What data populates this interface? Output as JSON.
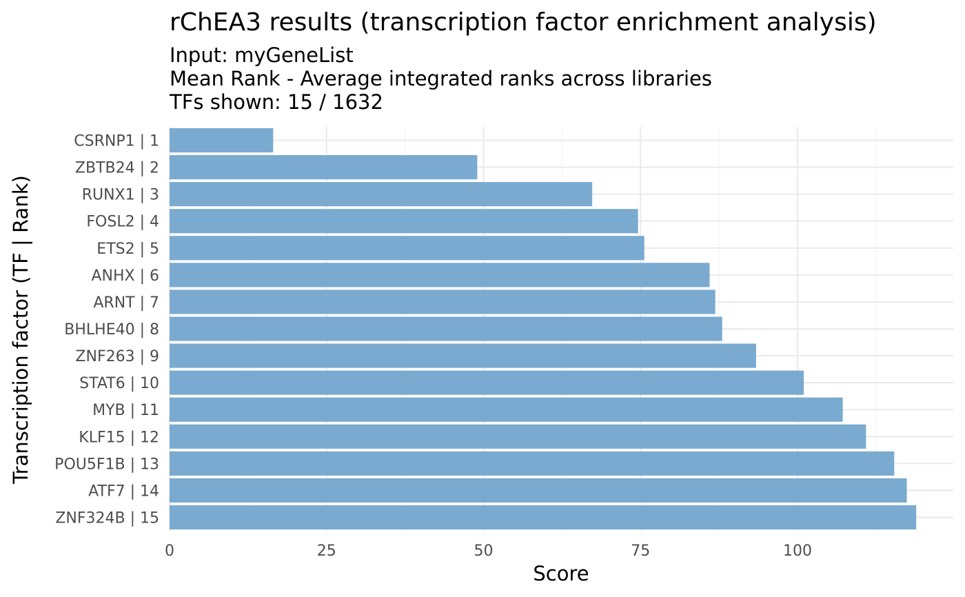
{
  "chart_data": {
    "type": "bar",
    "orientation": "horizontal",
    "title": "rChEA3 results (transcription factor enrichment analysis)",
    "subtitle_lines": [
      "Input: myGeneList",
      "Mean Rank - Average integrated ranks across libraries",
      "TFs shown: 15 / 1632"
    ],
    "xlabel": "Score",
    "ylabel": "Transcription factor (TF | Rank)",
    "categories": [
      "CSRNP1 | 1",
      "ZBTB24 | 2",
      "RUNX1 | 3",
      "FOSL2 | 4",
      "ETS2 | 5",
      "ANHX | 6",
      "ARNT | 7",
      "BHLHE40 | 8",
      "ZNF263 | 9",
      "STAT6 | 10",
      "MYB | 11",
      "KLF15 | 12",
      "POU5F1B | 13",
      "ATF7 | 14",
      "ZNF324B | 15"
    ],
    "values": [
      16.5,
      49,
      67.3,
      74.6,
      75.6,
      86,
      86.9,
      88,
      93.4,
      101,
      107.2,
      110.9,
      115.4,
      117.4,
      118.9
    ],
    "x_ticks": [
      0,
      25,
      50,
      75,
      100
    ],
    "x_tick_labels": [
      "0",
      "25",
      "50",
      "75",
      "100"
    ],
    "xlim": [
      0,
      124.8
    ],
    "bar_color": "#7aaacf",
    "grid": true,
    "legend": "none"
  }
}
